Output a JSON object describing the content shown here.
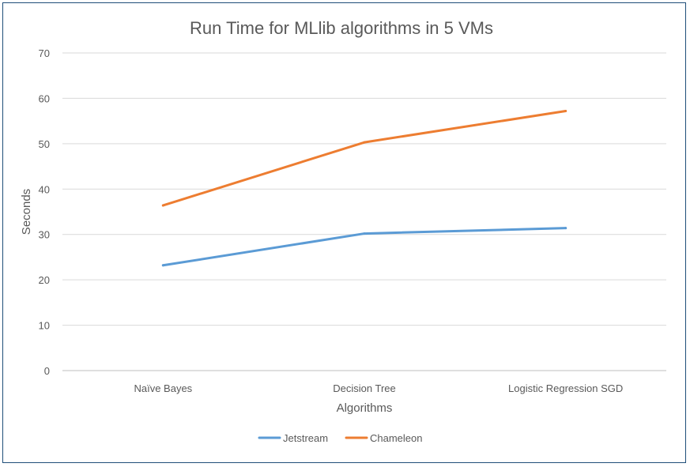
{
  "chart_data": {
    "type": "line",
    "title": "Run Time for MLlib algorithms in 5 VMs",
    "xlabel": "Algorithms",
    "ylabel": "Seconds",
    "categories": [
      "Naïve Bayes",
      "Decision Tree",
      "Logistic Regression SGD"
    ],
    "ylim": [
      0,
      70
    ],
    "yticks": [
      0,
      10,
      20,
      30,
      40,
      50,
      60,
      70
    ],
    "grid": true,
    "legend_position": "bottom",
    "series": [
      {
        "name": "Jetstream",
        "color": "#5b9bd5",
        "values": [
          23.2,
          30.2,
          31.4
        ]
      },
      {
        "name": "Chameleon",
        "color": "#ed7d31",
        "values": [
          36.4,
          50.3,
          57.2
        ]
      }
    ]
  }
}
